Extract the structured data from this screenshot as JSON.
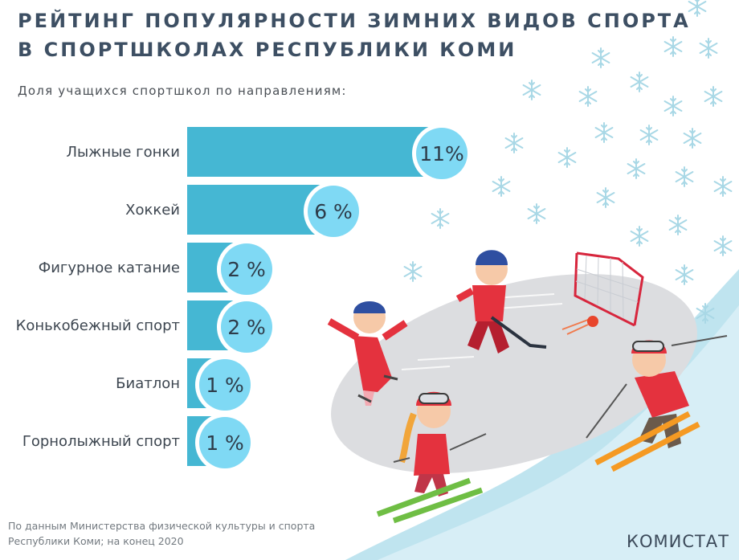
{
  "header": {
    "title_line1": "РЕЙТИНГ ПОПУЛЯРНОСТИ ЗИМНИХ ВИДОВ СПОРТА",
    "title_line2": "В СПОРТШКОЛАХ РЕСПУБЛИКИ КОМИ",
    "subtitle": "Доля учащихся спортшкол по направлениям:"
  },
  "chart_data": {
    "type": "bar",
    "orientation": "horizontal",
    "categories": [
      "Лыжные гонки",
      "Хоккей",
      "Фигурное катание",
      "Конькобежный спорт",
      "Биатлон",
      "Горнолыжный спорт"
    ],
    "values": [
      11,
      6,
      2,
      2,
      1,
      1
    ],
    "value_labels": [
      "11%",
      "6 %",
      "2 %",
      "2 %",
      "1 %",
      "1 %"
    ],
    "unit": "%",
    "xlim": [
      0,
      11
    ],
    "grid": false,
    "legend": "none",
    "colors": {
      "bar": "#45b7d3",
      "bubble": "#7fd9f4",
      "bubble_ring": "#ffffff"
    }
  },
  "illustration": {
    "icons": [
      "snowflake-icon",
      "hockey-goal-icon",
      "puck-icon",
      "child-skater-icon",
      "hockey-player-icon",
      "child-skier-icon",
      "adult-skier-icon"
    ]
  },
  "footer": {
    "source_line1": "По данным Министерства физической культуры и спорта",
    "source_line2": "Республики Коми;  на конец 2020",
    "brand": "КОМИСТАТ"
  }
}
